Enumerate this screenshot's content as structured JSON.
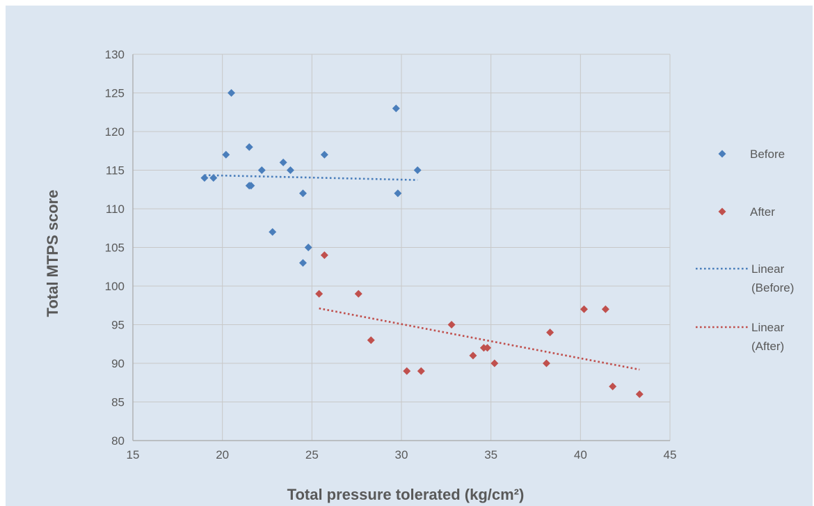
{
  "chart_data": {
    "type": "scatter",
    "title": "",
    "xlabel": "Total pressure tolerated (kg/cm²)",
    "ylabel": "Total MTPS score",
    "xlim": [
      15,
      45
    ],
    "ylim": [
      80,
      130
    ],
    "xticks": [
      15,
      20,
      25,
      30,
      35,
      40,
      45
    ],
    "yticks": [
      80,
      85,
      90,
      95,
      100,
      105,
      110,
      115,
      120,
      125,
      130
    ],
    "grid": true,
    "legend_position": "right",
    "series": [
      {
        "name": "Before",
        "color": "#4a7ebb",
        "marker": "diamond",
        "points": [
          [
            19.0,
            114
          ],
          [
            19.5,
            114
          ],
          [
            20.2,
            117
          ],
          [
            20.5,
            125
          ],
          [
            21.5,
            118
          ],
          [
            21.5,
            113
          ],
          [
            21.6,
            113
          ],
          [
            22.2,
            115
          ],
          [
            22.8,
            107
          ],
          [
            23.4,
            116
          ],
          [
            23.8,
            115
          ],
          [
            24.5,
            112
          ],
          [
            24.5,
            103
          ],
          [
            24.8,
            105
          ],
          [
            25.7,
            117
          ],
          [
            29.7,
            123
          ],
          [
            29.8,
            112
          ],
          [
            30.9,
            115
          ]
        ]
      },
      {
        "name": "After",
        "color": "#c0504d",
        "marker": "diamond",
        "points": [
          [
            25.4,
            99
          ],
          [
            25.7,
            104
          ],
          [
            27.6,
            99
          ],
          [
            28.3,
            93
          ],
          [
            30.3,
            89
          ],
          [
            31.1,
            89
          ],
          [
            32.8,
            95
          ],
          [
            34.0,
            91
          ],
          [
            34.6,
            92
          ],
          [
            34.8,
            92
          ],
          [
            35.2,
            90
          ],
          [
            38.1,
            90
          ],
          [
            38.3,
            94
          ],
          [
            40.2,
            97
          ],
          [
            41.4,
            97
          ],
          [
            41.8,
            87
          ],
          [
            43.3,
            86
          ]
        ]
      }
    ],
    "trendlines": [
      {
        "name": "Linear (Before)",
        "series": "Before",
        "color": "#4a7ebb",
        "style": "dotted",
        "x_range": [
          19.0,
          30.9
        ]
      },
      {
        "name": "Linear (After)",
        "series": "After",
        "color": "#c0504d",
        "style": "dotted",
        "x_range": [
          25.4,
          43.3
        ]
      }
    ],
    "legend": [
      {
        "kind": "marker",
        "series": "Before",
        "lines": [
          "Before"
        ]
      },
      {
        "kind": "marker",
        "series": "After",
        "lines": [
          "After"
        ]
      },
      {
        "kind": "line",
        "series": "Before",
        "lines": [
          "Linear",
          "(Before)"
        ]
      },
      {
        "kind": "line",
        "series": "After",
        "lines": [
          "Linear",
          "(After)"
        ]
      }
    ],
    "colors": {
      "background": "#dce6f1",
      "gridline": "#c8c8c8",
      "axis": "#a6a6a6",
      "text": "#595959"
    }
  }
}
